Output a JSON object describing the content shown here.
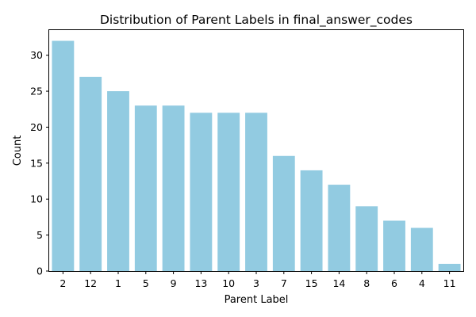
{
  "chart_data": {
    "type": "bar",
    "title": "Distribution of Parent Labels in final_answer_codes",
    "xlabel": "Parent Label",
    "ylabel": "Count",
    "categories": [
      "2",
      "12",
      "1",
      "5",
      "9",
      "13",
      "10",
      "3",
      "7",
      "15",
      "14",
      "8",
      "6",
      "4",
      "11"
    ],
    "values": [
      32,
      27,
      25,
      23,
      23,
      22,
      22,
      22,
      16,
      14,
      12,
      9,
      7,
      6,
      1
    ],
    "ylim": [
      0,
      33.6
    ],
    "yticks": [
      0,
      5,
      10,
      15,
      20,
      25,
      30
    ],
    "grid": false,
    "legend": "none",
    "bar_color": "#92cbe1"
  }
}
